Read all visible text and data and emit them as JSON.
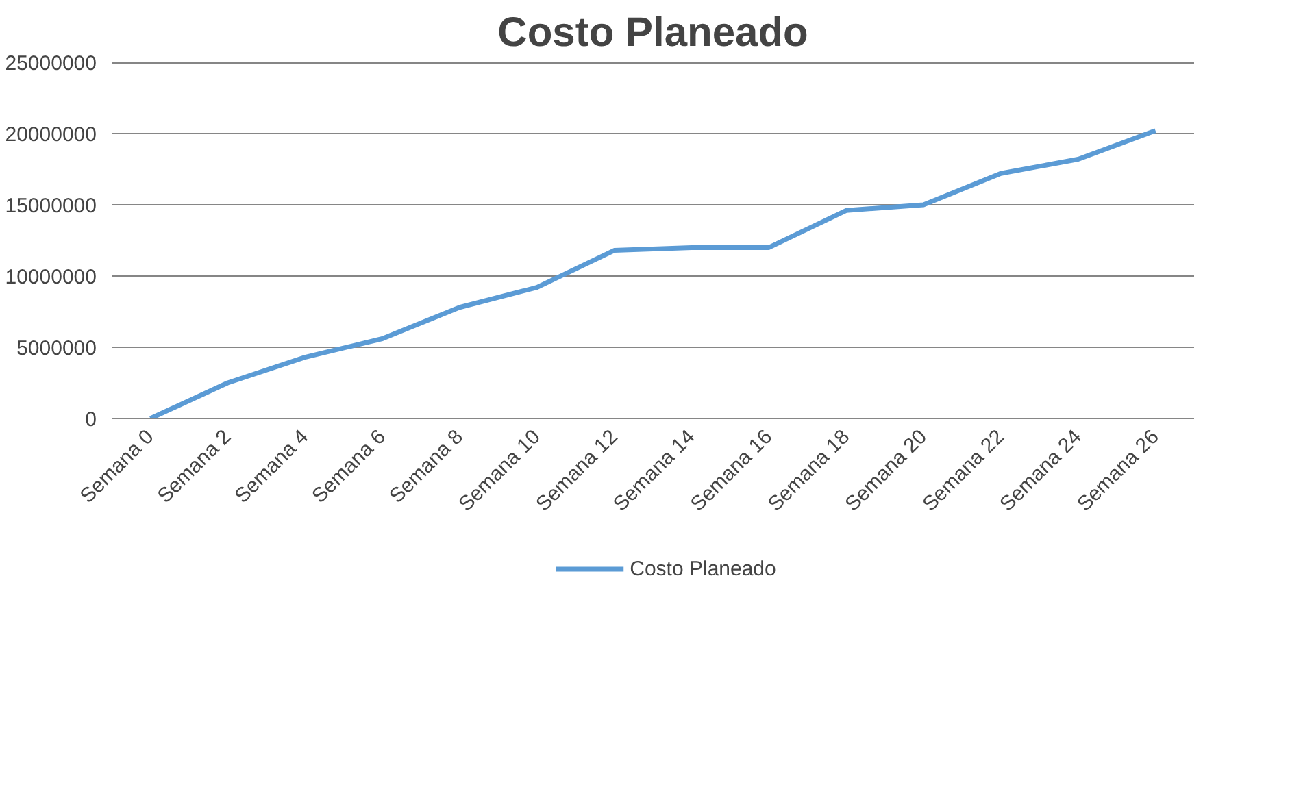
{
  "chart_data": {
    "type": "line",
    "title": "Costo Planeado",
    "categories": [
      "Semana 0",
      "Semana 2",
      "Semana 4",
      "Semana 6",
      "Semana 8",
      "Semana 10",
      "Semana 12",
      "Semana 14",
      "Semana 16",
      "Semana 18",
      "Semana 20",
      "Semana 22",
      "Semana 24",
      "Semana 26"
    ],
    "series": [
      {
        "name": "Costo Planeado",
        "color": "#5b9bd5",
        "values": [
          0,
          2500000,
          4300000,
          5600000,
          7800000,
          9200000,
          11800000,
          12000000,
          12000000,
          14600000,
          15000000,
          17200000,
          18200000,
          20200000
        ]
      }
    ],
    "ylim": [
      0,
      25000000
    ],
    "yticks": [
      0,
      5000000,
      10000000,
      15000000,
      20000000,
      25000000
    ],
    "grid": "y",
    "legend": "bottom",
    "marker": "none",
    "line_style": "solid"
  }
}
